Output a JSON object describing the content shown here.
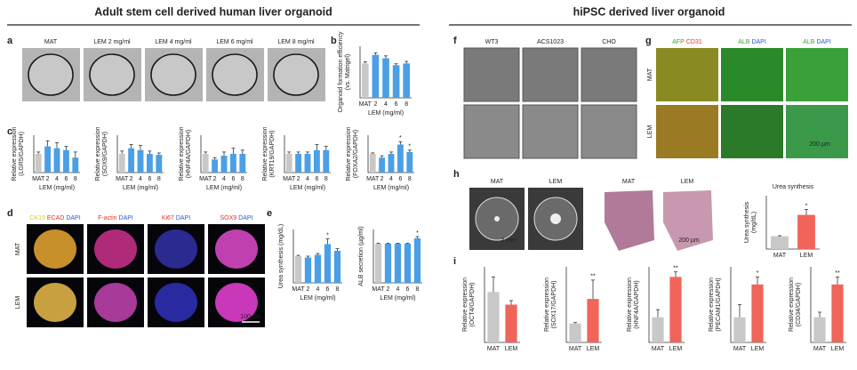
{
  "headers": [
    "Adult stem cell derived human liver organoid",
    "hiPSC derived liver organoid"
  ],
  "letters": [
    "a",
    "b",
    "c",
    "d",
    "e",
    "f",
    "g",
    "h",
    "i"
  ],
  "panel_a": {
    "labels": [
      "MAT",
      "LEM 2 mg/ml",
      "LEM 4 mg/ml",
      "LEM 6 mg/ml",
      "LEM 8 mg/ml"
    ]
  },
  "panel_d": {
    "stains": [
      [
        {
          "text": "CK19",
          "color": "#e0c81a"
        },
        {
          "text": "ECAD",
          "color": "#e0322a"
        },
        {
          "text": "DAPI",
          "color": "#2a55d6"
        }
      ],
      [
        {
          "text": "F-actin",
          "color": "#e0322a"
        },
        {
          "text": "DAPI",
          "color": "#2a55d6"
        }
      ],
      [
        {
          "text": "Ki67",
          "color": "#e0322a"
        },
        {
          "text": "DAPI",
          "color": "#2a55d6"
        }
      ],
      [
        {
          "text": "SOX9",
          "color": "#e0322a"
        },
        {
          "text": "DAPI",
          "color": "#2a55d6"
        }
      ]
    ],
    "rows": [
      "MAT",
      "LEM"
    ],
    "scale": "100 µm"
  },
  "panel_f": {
    "labels": [
      "WT3",
      "ACS1023",
      "CHO"
    ]
  },
  "panel_g": {
    "stains": [
      [
        {
          "text": "AFP",
          "color": "#3aa03a"
        },
        {
          "text": "CD31",
          "color": "#e0322a"
        }
      ],
      [
        {
          "text": "ALB",
          "color": "#3aa03a"
        },
        {
          "text": "DAPI",
          "color": "#2a55d6"
        }
      ],
      [
        {
          "text": "ALB",
          "color": "#3aa03a"
        },
        {
          "text": "DAPI",
          "color": "#2a55d6"
        }
      ]
    ],
    "rows": [
      "MAT",
      "LEM"
    ],
    "scale": "200 µm"
  },
  "panel_h": {
    "labels": [
      "MAT",
      "LEM",
      "MAT",
      "LEM"
    ],
    "scales": [
      "2 mm",
      "200 µm"
    ]
  },
  "chart_data": [
    {
      "type": "bar",
      "ylabel": [
        "Organoid formation efficiency",
        "(vs. Matrigel)"
      ],
      "categories": [
        "MAT",
        "2",
        "4",
        "6",
        "8"
      ],
      "xlabel": "LEM (mg/ml)",
      "values": [
        1.0,
        1.25,
        1.15,
        0.95,
        1.0
      ],
      "errors": [
        0.05,
        0.06,
        0.07,
        0.04,
        0.06
      ],
      "significance": [
        null,
        null,
        null,
        null,
        null
      ],
      "colors": [
        "#c8c8c8",
        "#4a9fe6",
        "#4a9fe6",
        "#4a9fe6",
        "#4a9fe6"
      ],
      "ylim": [
        0,
        1.5
      ]
    },
    {
      "type": "bar",
      "ylabel": [
        "Relative expression",
        "(LGR5/GAPDH)"
      ],
      "categories": [
        "MAT",
        "2",
        "4",
        "6",
        "8"
      ],
      "xlabel": "LEM (mg/ml)",
      "values": [
        1.0,
        1.4,
        1.3,
        1.2,
        0.8
      ],
      "errors": [
        0.1,
        0.3,
        0.3,
        0.2,
        0.3
      ],
      "significance": [
        null,
        null,
        null,
        null,
        null
      ],
      "colors": [
        "#c8c8c8",
        "#4a9fe6",
        "#4a9fe6",
        "#4a9fe6",
        "#4a9fe6"
      ],
      "ylim": [
        0,
        2
      ]
    },
    {
      "type": "bar",
      "ylabel": [
        "Relative expression",
        "(SOX9/GAPDH)"
      ],
      "categories": [
        "MAT",
        "2",
        "4",
        "6",
        "8"
      ],
      "xlabel": "LEM (mg/ml)",
      "values": [
        1.0,
        1.3,
        1.2,
        1.0,
        0.95
      ],
      "errors": [
        0.15,
        0.2,
        0.25,
        0.15,
        0.1
      ],
      "significance": [
        null,
        null,
        null,
        null,
        null
      ],
      "colors": [
        "#c8c8c8",
        "#4a9fe6",
        "#4a9fe6",
        "#4a9fe6",
        "#4a9fe6"
      ],
      "ylim": [
        0,
        2
      ]
    },
    {
      "type": "bar",
      "ylabel": [
        "Relative expression",
        "(HNF4A/GAPDH)"
      ],
      "categories": [
        "MAT",
        "2",
        "4",
        "6",
        "8"
      ],
      "xlabel": "LEM (mg/ml)",
      "values": [
        1.0,
        0.7,
        0.9,
        1.0,
        1.0
      ],
      "errors": [
        0.1,
        0.1,
        0.2,
        0.3,
        0.2
      ],
      "significance": [
        null,
        null,
        null,
        null,
        null
      ],
      "colors": [
        "#c8c8c8",
        "#4a9fe6",
        "#4a9fe6",
        "#4a9fe6",
        "#4a9fe6"
      ],
      "ylim": [
        0,
        2
      ]
    },
    {
      "type": "bar",
      "ylabel": [
        "Relative expression",
        "(KRT19/GAPDH)"
      ],
      "categories": [
        "MAT",
        "2",
        "4",
        "6",
        "8"
      ],
      "xlabel": "LEM (mg/ml)",
      "values": [
        1.0,
        1.0,
        1.0,
        1.2,
        1.2
      ],
      "errors": [
        0.1,
        0.1,
        0.1,
        0.3,
        0.2
      ],
      "significance": [
        null,
        null,
        null,
        null,
        null
      ],
      "colors": [
        "#c8c8c8",
        "#4a9fe6",
        "#4a9fe6",
        "#4a9fe6",
        "#4a9fe6"
      ],
      "ylim": [
        0,
        2
      ]
    },
    {
      "type": "bar",
      "ylabel": [
        "Relative expression",
        "(FOXA2/GAPDH)"
      ],
      "categories": [
        "MAT",
        "2",
        "4",
        "6",
        "8"
      ],
      "xlabel": "LEM (mg/ml)",
      "values": [
        1.0,
        0.8,
        1.0,
        1.5,
        1.1
      ],
      "errors": [
        0.05,
        0.1,
        0.1,
        0.15,
        0.1
      ],
      "significance": [
        null,
        null,
        null,
        "*",
        "*"
      ],
      "colors": [
        "#c8c8c8",
        "#4a9fe6",
        "#4a9fe6",
        "#4a9fe6",
        "#4a9fe6"
      ],
      "ylim": [
        0,
        2
      ]
    },
    {
      "type": "bar",
      "ylabel": [
        "Urea synthesis (mg/dL)"
      ],
      "categories": [
        "MAT",
        "2",
        "4",
        "6",
        "8"
      ],
      "xlabel": "LEM (mg/ml)",
      "values": [
        1.0,
        0.95,
        1.05,
        1.45,
        1.2
      ],
      "errors": [
        0.03,
        0.05,
        0.05,
        0.2,
        0.08
      ],
      "significance": [
        null,
        null,
        null,
        "*",
        null
      ],
      "colors": [
        "#c8c8c8",
        "#4a9fe6",
        "#4a9fe6",
        "#4a9fe6",
        "#4a9fe6"
      ],
      "ylim": [
        0,
        2
      ]
    },
    {
      "type": "bar",
      "ylabel": [
        "ALB secretion (µg/ml)"
      ],
      "categories": [
        "MAT",
        "2",
        "4",
        "6",
        "8"
      ],
      "xlabel": "LEM (mg/ml)",
      "values": [
        0.22,
        0.22,
        0.22,
        0.22,
        0.25
      ],
      "errors": [
        0.003,
        0.003,
        0.003,
        0.003,
        0.01
      ],
      "significance": [
        null,
        null,
        null,
        null,
        "*"
      ],
      "colors": [
        "#c8c8c8",
        "#4a9fe6",
        "#4a9fe6",
        "#4a9fe6",
        "#4a9fe6"
      ],
      "ylim": [
        0,
        0.3
      ]
    },
    {
      "type": "bar",
      "title": "Urea synthesis",
      "ylabel": [
        "Urea synthesis",
        "(mg/dL)"
      ],
      "categories": [
        "MAT",
        "LEM"
      ],
      "xlabel": null,
      "values": [
        0.12,
        0.32
      ],
      "errors": [
        0.005,
        0.05
      ],
      "significance": [
        null,
        "*"
      ],
      "colors": [
        "#c8c8c8",
        "#f0645a"
      ],
      "ylim": [
        0,
        0.5
      ]
    },
    {
      "type": "bar",
      "ylabel": [
        "Relative expression",
        "(OCT4/GAPDH)"
      ],
      "categories": [
        "MAT",
        "LEM"
      ],
      "xlabel": null,
      "values": [
        1.0,
        0.75
      ],
      "errors": [
        0.3,
        0.08
      ],
      "significance": [
        null,
        null
      ],
      "colors": [
        "#c8c8c8",
        "#f0645a"
      ],
      "ylim": [
        0,
        1.5
      ]
    },
    {
      "type": "bar",
      "ylabel": [
        "Relative expression",
        "(SOX17/GAPDH)"
      ],
      "categories": [
        "MAT",
        "LEM"
      ],
      "xlabel": null,
      "values": [
        1.0,
        2.3
      ],
      "errors": [
        0.05,
        1.0
      ],
      "significance": [
        null,
        "**"
      ],
      "colors": [
        "#c8c8c8",
        "#f0645a"
      ],
      "ylim": [
        0,
        4
      ]
    },
    {
      "type": "bar",
      "ylabel": [
        "Relative expression",
        "(HNF4A/GAPDH)"
      ],
      "categories": [
        "MAT",
        "LEM"
      ],
      "xlabel": null,
      "values": [
        1.0,
        2.6
      ],
      "errors": [
        0.3,
        0.2
      ],
      "significance": [
        null,
        "**"
      ],
      "colors": [
        "#c8c8c8",
        "#f0645a"
      ],
      "ylim": [
        0,
        3
      ]
    },
    {
      "type": "bar",
      "ylabel": [
        "Relative expression",
        "(PECAM1/GAPDH)"
      ],
      "categories": [
        "MAT",
        "LEM"
      ],
      "xlabel": null,
      "values": [
        1.0,
        2.3
      ],
      "errors": [
        0.5,
        0.3
      ],
      "significance": [
        null,
        "*"
      ],
      "colors": [
        "#c8c8c8",
        "#f0645a"
      ],
      "ylim": [
        0,
        3
      ]
    },
    {
      "type": "bar",
      "ylabel": [
        "Relative expression",
        "(CD34/GAPDH)"
      ],
      "categories": [
        "MAT",
        "LEM"
      ],
      "xlabel": null,
      "values": [
        1.0,
        2.3
      ],
      "errors": [
        0.2,
        0.3
      ],
      "significance": [
        null,
        "**"
      ],
      "colors": [
        "#c8c8c8",
        "#f0645a"
      ],
      "ylim": [
        0,
        3
      ]
    }
  ]
}
